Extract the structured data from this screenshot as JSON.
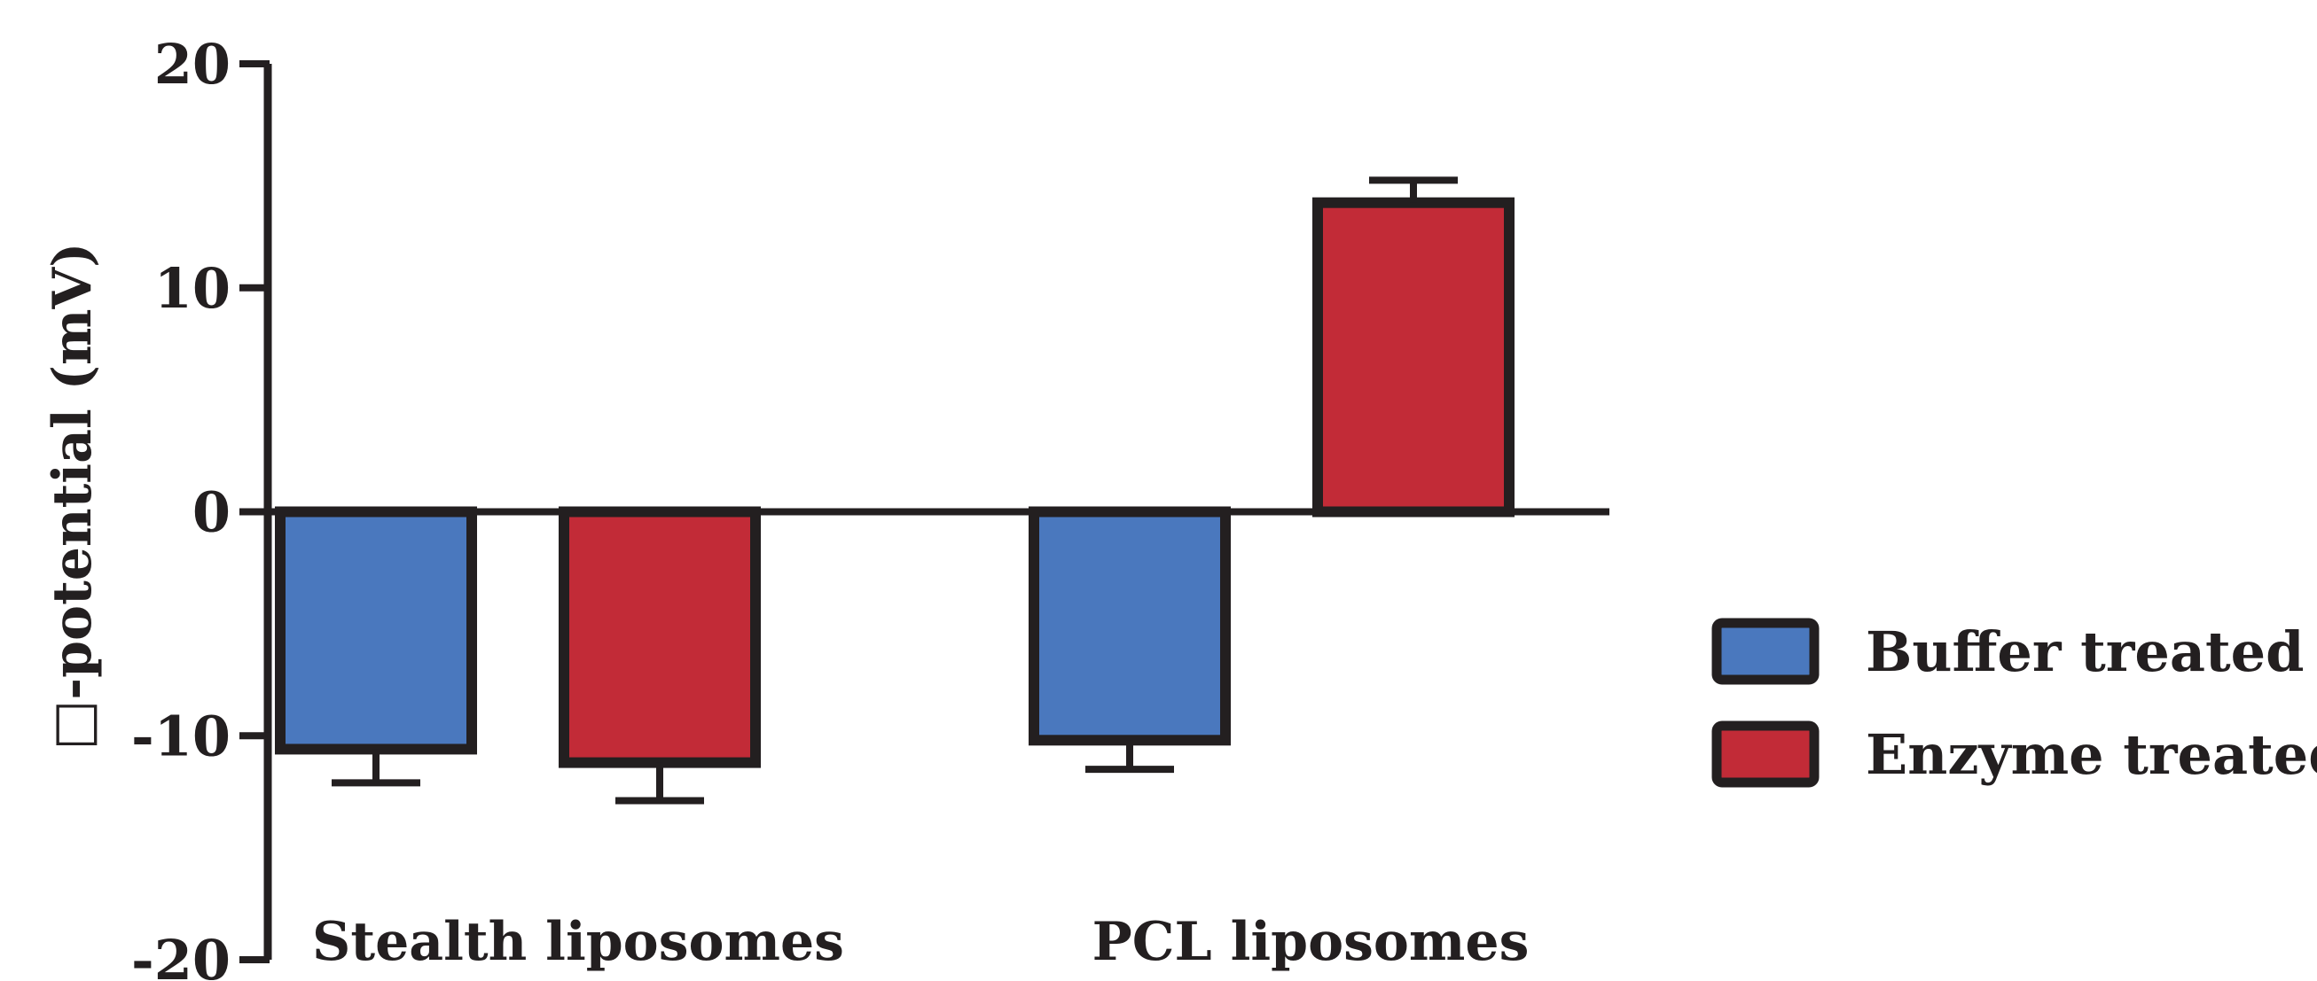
{
  "chart_data": {
    "type": "bar",
    "categories": [
      "Stealth liposomes",
      "PCL liposomes"
    ],
    "series": [
      {
        "name": "Buffer treated",
        "color": "#4a78be",
        "values": [
          -10.6,
          -10.2
        ],
        "errors": [
          1.5,
          1.3
        ]
      },
      {
        "name": "Enzyme treated",
        "color": "#c22b37",
        "values": [
          -11.2,
          13.8
        ],
        "errors": [
          1.7,
          1.0
        ]
      }
    ],
    "ylabel": "□-potential (mV)",
    "ylim": [
      -20,
      20
    ],
    "yticks": [
      "20",
      "10",
      "0",
      "-10",
      "-20"
    ],
    "ytick_values": [
      20,
      10,
      0,
      -10,
      -20
    ],
    "legend_position": "right",
    "axis_color": "#231f20"
  }
}
